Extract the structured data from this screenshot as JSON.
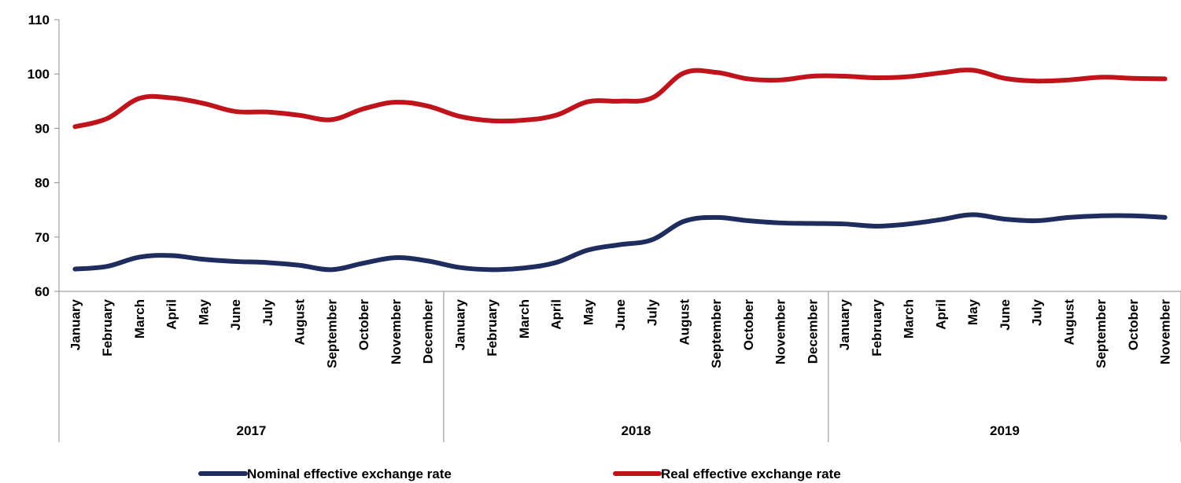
{
  "chart_data": {
    "type": "line",
    "title": "",
    "xlabel": "",
    "ylabel": "",
    "ylim": [
      60,
      110
    ],
    "yticks": [
      60,
      70,
      80,
      90,
      100,
      110
    ],
    "grid": false,
    "legend_position": "bottom",
    "x": [
      {
        "year": "2017",
        "month": "January"
      },
      {
        "year": "2017",
        "month": "February"
      },
      {
        "year": "2017",
        "month": "March"
      },
      {
        "year": "2017",
        "month": "April"
      },
      {
        "year": "2017",
        "month": "May"
      },
      {
        "year": "2017",
        "month": "June"
      },
      {
        "year": "2017",
        "month": "July"
      },
      {
        "year": "2017",
        "month": "August"
      },
      {
        "year": "2017",
        "month": "September"
      },
      {
        "year": "2017",
        "month": "October"
      },
      {
        "year": "2017",
        "month": "November"
      },
      {
        "year": "2017",
        "month": "December"
      },
      {
        "year": "2018",
        "month": "January"
      },
      {
        "year": "2018",
        "month": "February"
      },
      {
        "year": "2018",
        "month": "March"
      },
      {
        "year": "2018",
        "month": "April"
      },
      {
        "year": "2018",
        "month": "May"
      },
      {
        "year": "2018",
        "month": "June"
      },
      {
        "year": "2018",
        "month": "July"
      },
      {
        "year": "2018",
        "month": "August"
      },
      {
        "year": "2018",
        "month": "September"
      },
      {
        "year": "2018",
        "month": "October"
      },
      {
        "year": "2018",
        "month": "November"
      },
      {
        "year": "2018",
        "month": "December"
      },
      {
        "year": "2019",
        "month": "January"
      },
      {
        "year": "2019",
        "month": "February"
      },
      {
        "year": "2019",
        "month": "March"
      },
      {
        "year": "2019",
        "month": "April"
      },
      {
        "year": "2019",
        "month": "May"
      },
      {
        "year": "2019",
        "month": "June"
      },
      {
        "year": "2019",
        "month": "July"
      },
      {
        "year": "2019",
        "month": "August"
      },
      {
        "year": "2019",
        "month": "September"
      },
      {
        "year": "2019",
        "month": "October"
      },
      {
        "year": "2019",
        "month": "November"
      }
    ],
    "years": [
      "2017",
      "2018",
      "2019"
    ],
    "series": [
      {
        "name": "Nominal effective exchange rate",
        "color": "#1f2d5e",
        "values": [
          64.1,
          64.6,
          66.3,
          66.6,
          65.9,
          65.5,
          65.3,
          64.8,
          64.0,
          65.2,
          66.2,
          65.6,
          64.4,
          64.0,
          64.3,
          65.3,
          67.6,
          68.6,
          69.5,
          72.9,
          73.6,
          73.0,
          72.6,
          72.5,
          72.4,
          72.0,
          72.4,
          73.2,
          74.1,
          73.3,
          73.0,
          73.6,
          73.9,
          73.9,
          73.6
        ]
      },
      {
        "name": "Real effective exchange rate",
        "color": "#c0141c",
        "values": [
          90.3,
          91.8,
          95.5,
          95.6,
          94.6,
          93.1,
          93.0,
          92.4,
          91.6,
          93.6,
          94.8,
          94.1,
          92.2,
          91.4,
          91.5,
          92.4,
          94.9,
          95.0,
          95.6,
          100.2,
          100.3,
          99.1,
          98.9,
          99.6,
          99.6,
          99.3,
          99.5,
          100.2,
          100.7,
          99.2,
          98.7,
          98.9,
          99.4,
          99.2,
          99.1
        ]
      }
    ]
  }
}
